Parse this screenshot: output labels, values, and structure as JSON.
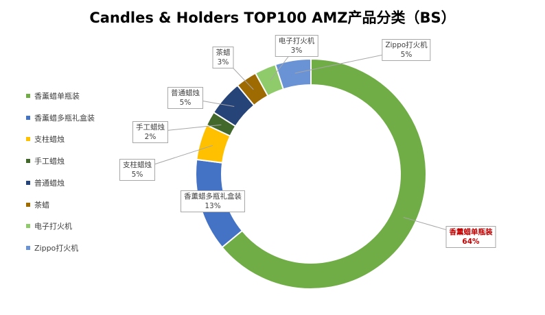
{
  "chart_data": {
    "type": "doughnut",
    "title": "Candles & Holders TOP100 AMZ产品分类（BS）",
    "legend_position": "left",
    "series": [
      {
        "label": "香薰蜡单瓶装",
        "value": 64,
        "value_label": "64%",
        "color": "#70ad47",
        "highlight": true
      },
      {
        "label": "香薰蜡多瓶礼盒装",
        "value": 13,
        "value_label": "13%",
        "color": "#4472c4"
      },
      {
        "label": "支柱蜡烛",
        "value": 5,
        "value_label": "5%",
        "color": "#ffc000"
      },
      {
        "label": "手工蜡烛",
        "value": 2,
        "value_label": "2%",
        "color": "#43682b"
      },
      {
        "label": "普通蜡烛",
        "value": 5,
        "value_label": "5%",
        "color": "#264478"
      },
      {
        "label": "茶蜡",
        "value": 3,
        "value_label": "3%",
        "color": "#9e6b03"
      },
      {
        "label": "电子打火机",
        "value": 3,
        "value_label": "3%",
        "color": "#8fcb6a"
      },
      {
        "label": "Zippo打火机",
        "value": 5,
        "value_label": "5%",
        "color": "#6a93d6"
      }
    ]
  }
}
